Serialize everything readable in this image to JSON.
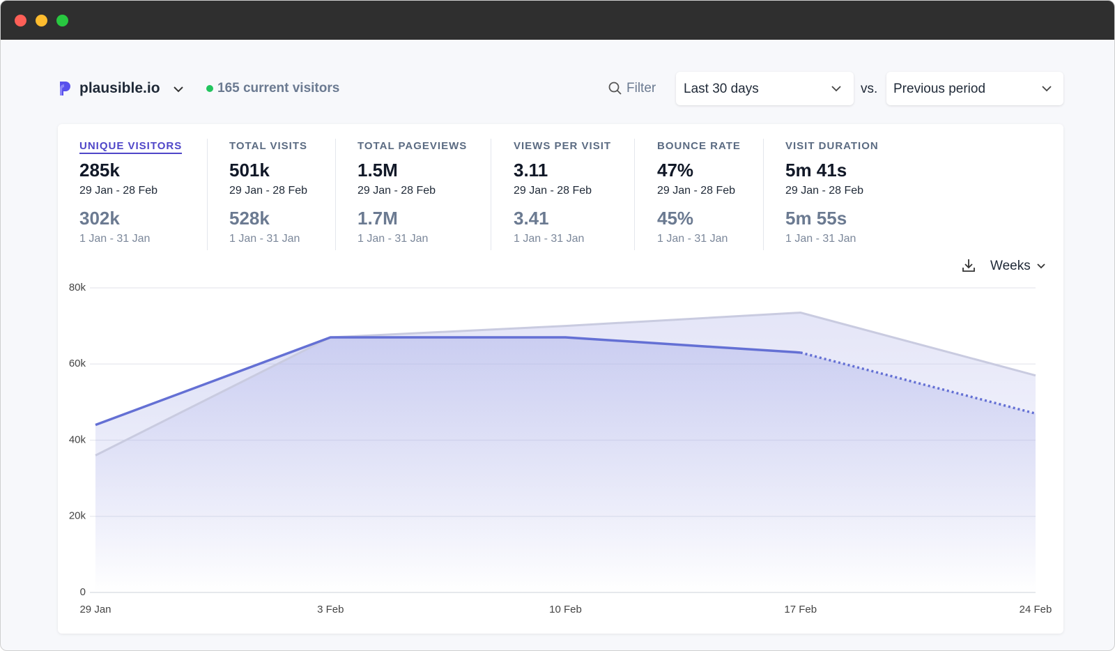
{
  "header": {
    "site": "plausible.io",
    "visitors": "165 current visitors",
    "filter": "Filter",
    "period": "Last 30 days",
    "vs": "vs.",
    "compare": "Previous period"
  },
  "metrics": [
    {
      "label": "UNIQUE VISITORS",
      "value": "285k",
      "period": "29 Jan - 28 Feb",
      "prev_value": "302k",
      "prev_period": "1 Jan - 31 Jan"
    },
    {
      "label": "TOTAL VISITS",
      "value": "501k",
      "period": "29 Jan - 28 Feb",
      "prev_value": "528k",
      "prev_period": "1 Jan - 31 Jan"
    },
    {
      "label": "TOTAL PAGEVIEWS",
      "value": "1.5M",
      "period": "29 Jan - 28 Feb",
      "prev_value": "1.7M",
      "prev_period": "1 Jan - 31 Jan"
    },
    {
      "label": "VIEWS PER VISIT",
      "value": "3.11",
      "period": "29 Jan - 28 Feb",
      "prev_value": "3.41",
      "prev_period": "1 Jan - 31 Jan"
    },
    {
      "label": "BOUNCE RATE",
      "value": "47%",
      "period": "29 Jan - 28 Feb",
      "prev_value": "45%",
      "prev_period": "1 Jan - 31 Jan"
    },
    {
      "label": "VISIT DURATION",
      "value": "5m 41s",
      "period": "29 Jan - 28 Feb",
      "prev_value": "5m 55s",
      "prev_period": "1 Jan - 31 Jan"
    }
  ],
  "interval": "Weeks",
  "chart_data": {
    "type": "line",
    "categories": [
      "29 Jan",
      "3 Feb",
      "10 Feb",
      "17 Feb",
      "24 Feb"
    ],
    "series": [
      {
        "color": "#6470d4",
        "values": [
          44000,
          67000,
          67000,
          63000,
          47000
        ],
        "dashed_last_segment": true
      },
      {
        "color": "#c9cbe0",
        "values": [
          36000,
          67000,
          70000,
          73500,
          57000
        ]
      }
    ],
    "ylim": [
      0,
      80000
    ],
    "yticks": [
      0,
      {
        "value": 20000,
        "label": "20k"
      },
      {
        "value": 40000,
        "label": "40k"
      },
      {
        "value": 60000,
        "label": "60k"
      },
      {
        "value": 80000,
        "label": "80k"
      }
    ],
    "grid": true
  }
}
